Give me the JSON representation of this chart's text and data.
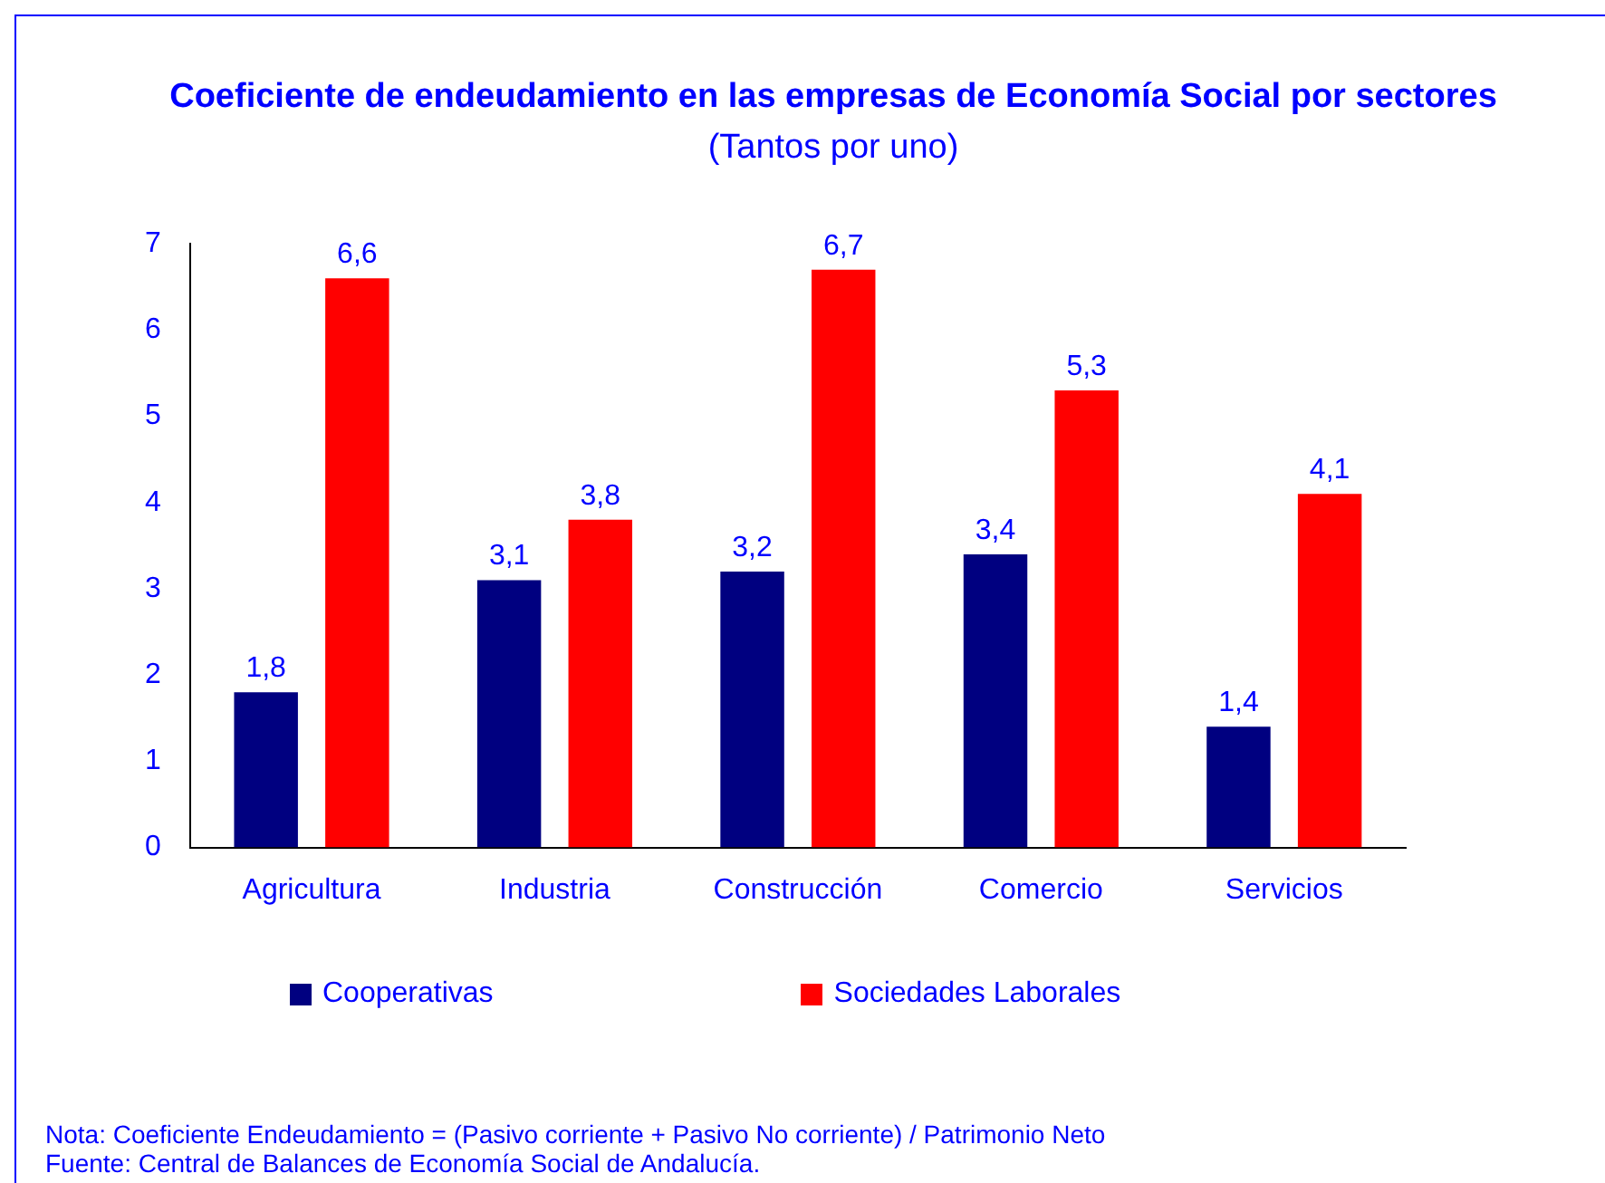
{
  "chart_data": {
    "type": "bar",
    "title": "Coeficiente de endeudamiento en las empresas de Economía Social por sectores",
    "subtitle": "(Tantos por uno)",
    "categories": [
      "Agricultura",
      "Industria",
      "Construcción",
      "Comercio",
      "Servicios"
    ],
    "series": [
      {
        "name": "Cooperativas",
        "color": "#000080",
        "values": [
          1.8,
          3.1,
          3.2,
          3.4,
          1.4
        ],
        "value_labels": [
          "1,8",
          "3,1",
          "3,2",
          "3,4",
          "1,4"
        ]
      },
      {
        "name": "Sociedades Laborales",
        "color": "#ff0000",
        "values": [
          6.6,
          3.8,
          6.7,
          5.3,
          4.1
        ],
        "value_labels": [
          "6,6",
          "3,8",
          "6,7",
          "5,3",
          "4,1"
        ]
      }
    ],
    "ylim": [
      0,
      7
    ],
    "yticks": [
      0,
      1,
      2,
      3,
      4,
      5,
      6,
      7
    ],
    "grid": false,
    "legend": "bottom",
    "annotations": [
      "Nota: Coeficiente Endeudamiento = (Pasivo corriente + Pasivo No corriente) / Patrimonio Neto",
      "Fuente: Central de Balances de Economía Social de Andalucía."
    ]
  }
}
